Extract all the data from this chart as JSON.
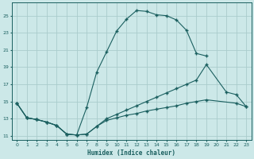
{
  "xlabel": "Humidex (Indice chaleur)",
  "bg_color": "#cce8e8",
  "grid_color": "#aacccc",
  "line_color": "#1a5f5f",
  "xlim": [
    -0.5,
    23.5
  ],
  "ylim": [
    10.5,
    26.5
  ],
  "xticks": [
    0,
    1,
    2,
    3,
    4,
    5,
    6,
    7,
    8,
    9,
    10,
    11,
    12,
    13,
    14,
    15,
    16,
    17,
    18,
    19,
    20,
    21,
    22,
    23
  ],
  "yticks": [
    11,
    13,
    15,
    17,
    19,
    21,
    23,
    25
  ],
  "line1_x": [
    0,
    1,
    2,
    3,
    4,
    5,
    6,
    7,
    8,
    9,
    10,
    11,
    12,
    13,
    14,
    15,
    16,
    17,
    18,
    19
  ],
  "line1_y": [
    14.8,
    13.1,
    12.9,
    12.6,
    12.2,
    11.2,
    11.1,
    14.3,
    18.4,
    20.8,
    23.2,
    24.6,
    25.6,
    25.5,
    25.1,
    25.0,
    24.5,
    23.3,
    20.6,
    20.3
  ],
  "line2_x": [
    0,
    1,
    2,
    3,
    4,
    5,
    6,
    7,
    8,
    9,
    10,
    11,
    12,
    13,
    14,
    15,
    16,
    17,
    18,
    19,
    21,
    22,
    23
  ],
  "line2_y": [
    14.8,
    13.1,
    12.9,
    12.6,
    12.2,
    11.2,
    11.1,
    11.2,
    12.1,
    13.0,
    13.5,
    14.0,
    14.5,
    15.0,
    15.5,
    16.0,
    16.5,
    17.0,
    17.5,
    19.3,
    16.1,
    15.8,
    14.4
  ],
  "line3_x": [
    0,
    1,
    2,
    3,
    4,
    5,
    6,
    7,
    8,
    9,
    10,
    11,
    12,
    13,
    14,
    15,
    16,
    17,
    18,
    19,
    22,
    23
  ],
  "line3_y": [
    14.8,
    13.1,
    12.9,
    12.6,
    12.2,
    11.2,
    11.1,
    11.2,
    12.1,
    12.8,
    13.1,
    13.4,
    13.6,
    13.9,
    14.1,
    14.3,
    14.5,
    14.8,
    15.0,
    15.2,
    14.8,
    14.4
  ]
}
